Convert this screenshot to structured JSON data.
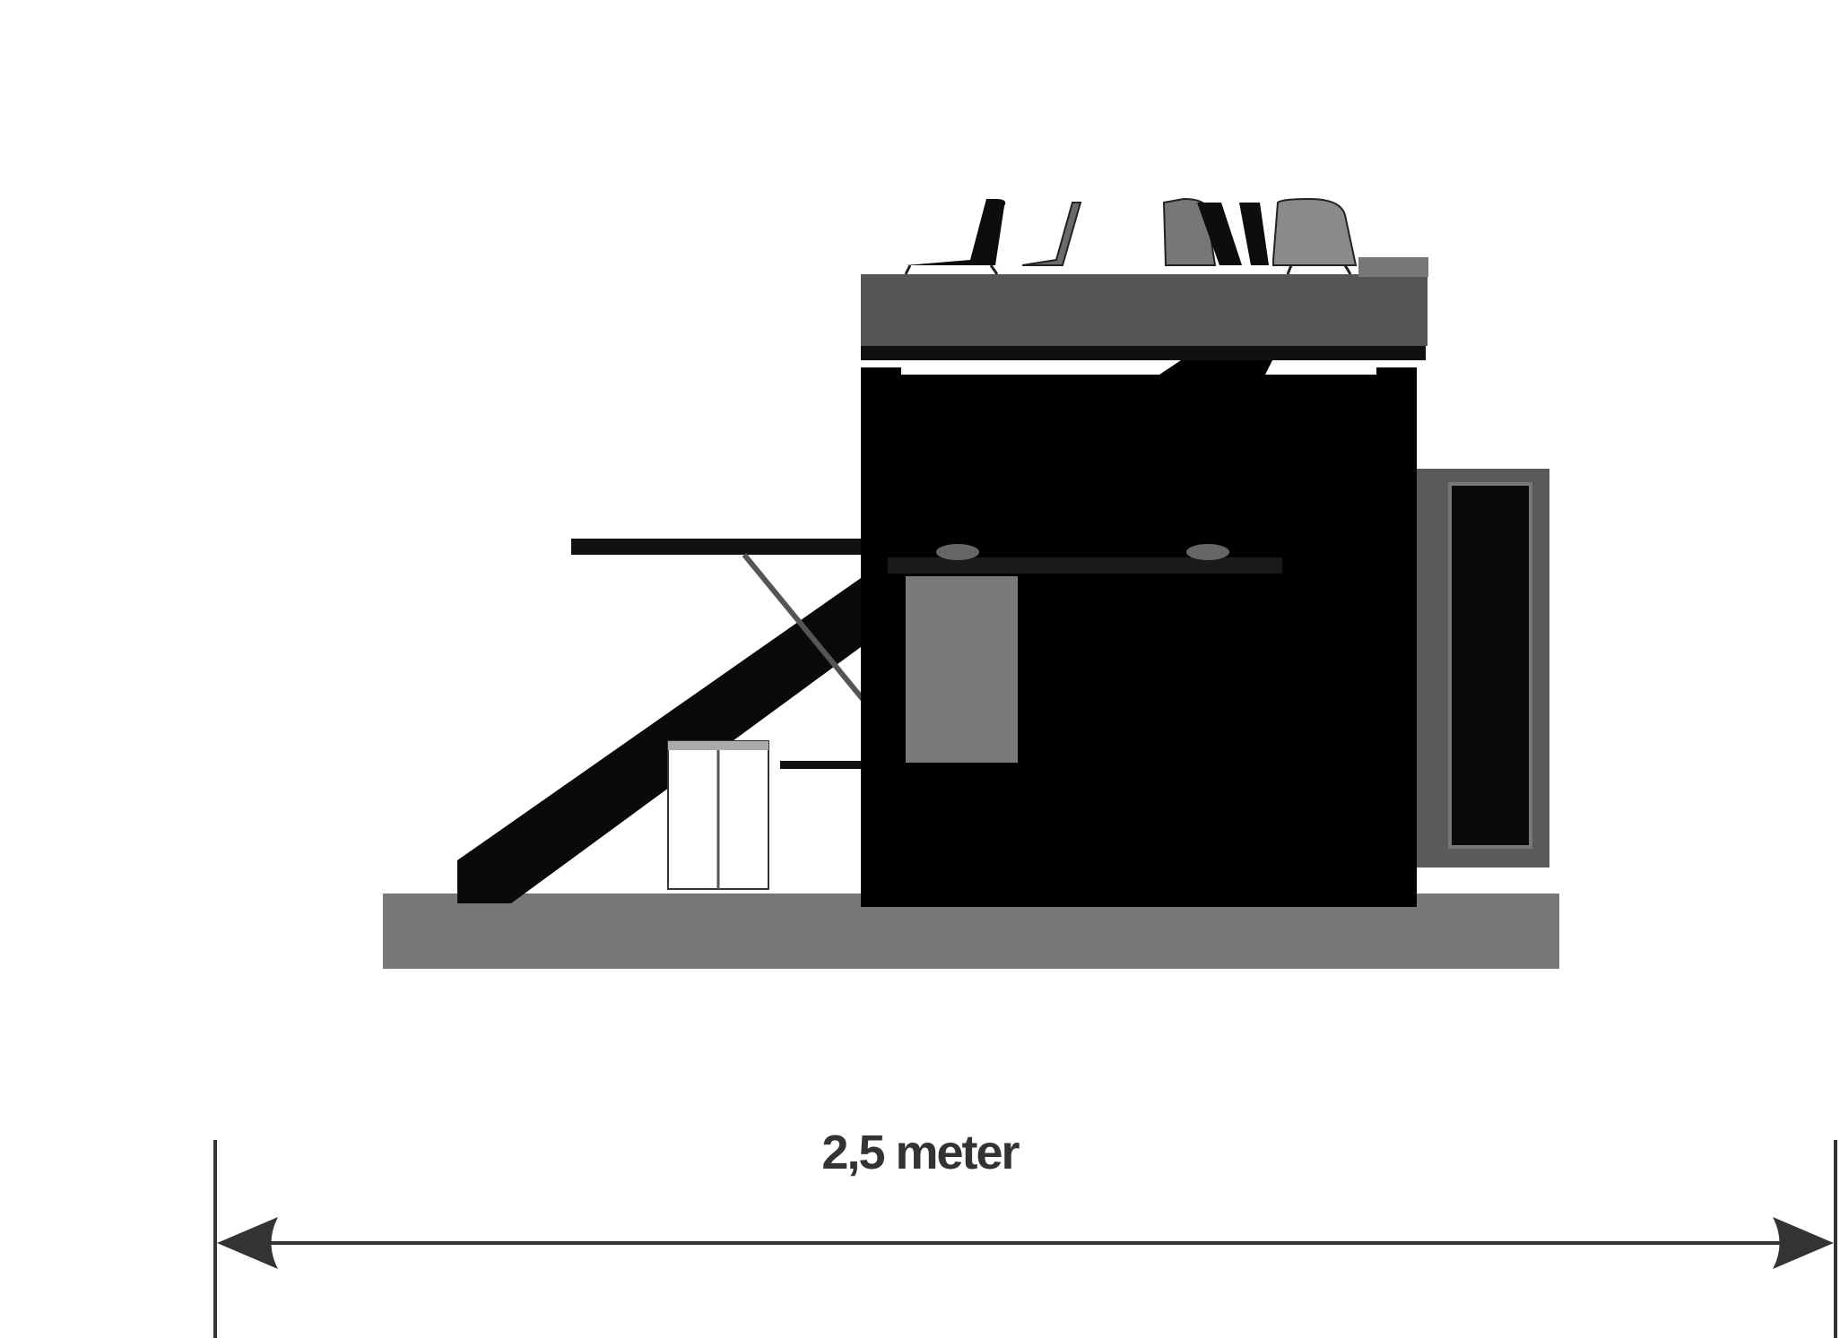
{
  "dimension": {
    "label": "2,5 meter"
  },
  "colors": {
    "background": "#ffffff",
    "unit_body": "#000000",
    "loft_platform": "#555555",
    "floor_base": "#777777",
    "side_door_frame": "#5a5a5a",
    "desk_block": "#7a7a7a",
    "dimension_line": "#333333"
  },
  "components": {
    "floor": "base-platform",
    "main_unit": "loft-unit-body",
    "upper_deck": "loft-platform",
    "stair": "diagonal-stair",
    "folding_table": "fold-out-table",
    "stool": "bar-stool",
    "door": "side-door",
    "chairs": [
      "chair",
      "chair",
      "chair",
      "chair"
    ]
  }
}
